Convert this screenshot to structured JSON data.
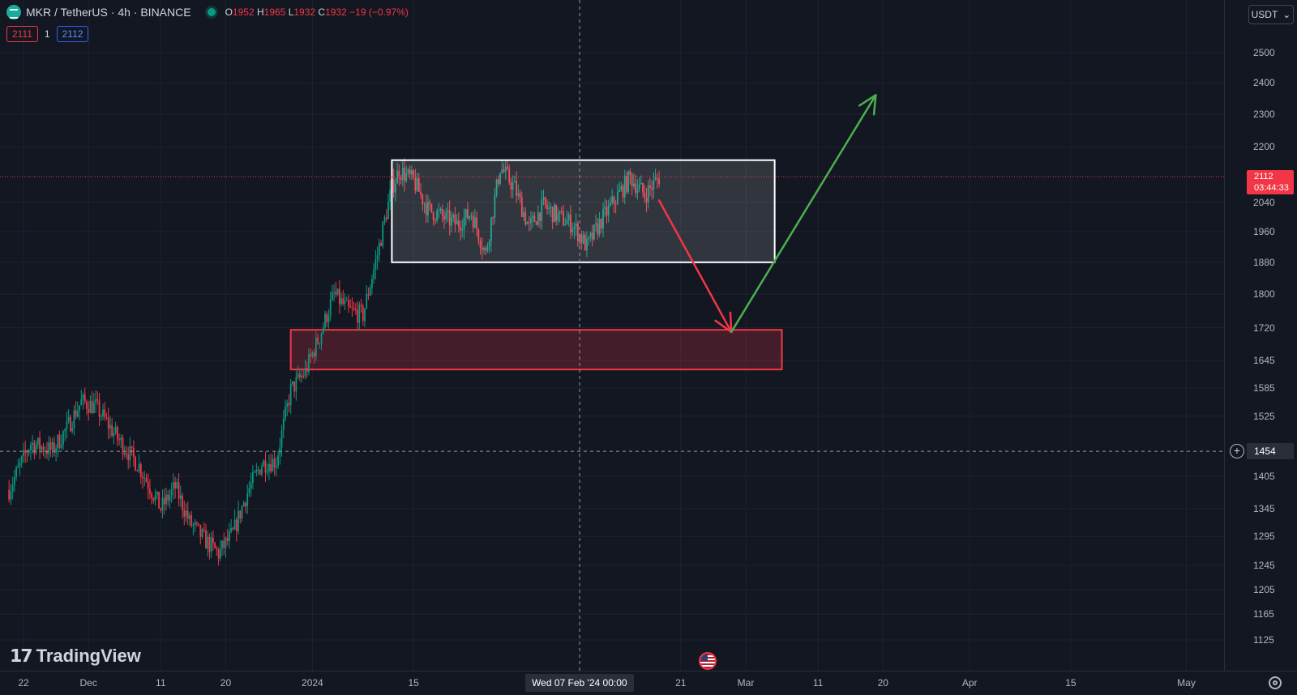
{
  "header": {
    "symbol": "MKR / TetherUS · 4h · BINANCE",
    "ohlc": {
      "o_label": "O",
      "o": "1952",
      "h_label": "H",
      "h": "1965",
      "l_label": "L",
      "l": "1932",
      "c_label": "C",
      "c": "1932",
      "change": "−19 (−0.97%)"
    },
    "bid": "2111",
    "spread": "1",
    "ask": "2112"
  },
  "currency": "USDT",
  "last_price": {
    "price": "2112",
    "countdown": "03:44:33"
  },
  "crosshair": {
    "price": "1454",
    "time_label": "Wed 07 Feb '24   00:00"
  },
  "watermark": "TradingView",
  "icons": {
    "symbol": "mkr-coin-icon",
    "status": "market-status-dot-icon",
    "currency_caret": "chevron-down-icon",
    "crosshair_add": "plus-circle-icon",
    "event": "us-flag-icon",
    "settings": "gear-icon"
  },
  "colors": {
    "background": "#131722",
    "up": "#089981",
    "down": "#f23645",
    "range_box": "#ffffff",
    "demand_zone": "#f23645",
    "bullish_arrow": "#4caf50",
    "bearish_arrow": "#f23645"
  },
  "chart_data": {
    "type": "candlestick",
    "title": "MKR / TetherUS · 4h · BINANCE",
    "y_scale": "log",
    "ylim": [
      1100,
      2600
    ],
    "y_ticks": [
      2500,
      2400,
      2300,
      2200,
      2040,
      1960,
      1880,
      1800,
      1720,
      1645,
      1585,
      1525,
      1405,
      1345,
      1295,
      1245,
      1205,
      1165,
      1125
    ],
    "x_ticks": [
      {
        "label": "22",
        "date": "2023-11-22"
      },
      {
        "label": "Dec",
        "date": "2023-12-01"
      },
      {
        "label": "11",
        "date": "2023-12-11"
      },
      {
        "label": "20",
        "date": "2023-12-20"
      },
      {
        "label": "2024",
        "date": "2024-01-01"
      },
      {
        "label": "15",
        "date": "2024-01-15"
      },
      {
        "label": "21",
        "date": "2024-02-21"
      },
      {
        "label": "Mar",
        "date": "2024-03-01"
      },
      {
        "label": "11",
        "date": "2024-03-11"
      },
      {
        "label": "20",
        "date": "2024-03-20"
      },
      {
        "label": "Apr",
        "date": "2024-04-01"
      },
      {
        "label": "15",
        "date": "2024-04-15"
      },
      {
        "label": "May",
        "date": "2024-05-01"
      }
    ],
    "grid": true,
    "price_path": [
      [
        "2023-11-20",
        1380
      ],
      [
        "2023-11-23",
        1470
      ],
      [
        "2023-11-26",
        1455
      ],
      [
        "2023-11-28",
        1500
      ],
      [
        "2023-11-30",
        1555
      ],
      [
        "2023-12-02",
        1545
      ],
      [
        "2023-12-05",
        1480
      ],
      [
        "2023-12-08",
        1425
      ],
      [
        "2023-12-11",
        1345
      ],
      [
        "2023-12-13",
        1385
      ],
      [
        "2023-12-15",
        1320
      ],
      [
        "2023-12-17",
        1290
      ],
      [
        "2023-12-19",
        1265
      ],
      [
        "2023-12-21",
        1300
      ],
      [
        "2023-12-23",
        1375
      ],
      [
        "2023-12-25",
        1430
      ],
      [
        "2023-12-27",
        1435
      ],
      [
        "2023-12-29",
        1580
      ],
      [
        "2023-12-31",
        1620
      ],
      [
        "2024-01-02",
        1700
      ],
      [
        "2024-01-04",
        1800
      ],
      [
        "2024-01-06",
        1760
      ],
      [
        "2024-01-08",
        1750
      ],
      [
        "2024-01-10",
        1900
      ],
      [
        "2024-01-12",
        2080
      ],
      [
        "2024-01-13",
        2130
      ],
      [
        "2024-01-15",
        2100
      ],
      [
        "2024-01-17",
        2020
      ],
      [
        "2024-01-19",
        2000
      ],
      [
        "2024-01-21",
        1980
      ],
      [
        "2024-01-23",
        2010
      ],
      [
        "2024-01-25",
        1900
      ],
      [
        "2024-01-27",
        2140
      ],
      [
        "2024-01-29",
        2080
      ],
      [
        "2024-01-31",
        1970
      ],
      [
        "2024-02-02",
        2030
      ],
      [
        "2024-02-04",
        2000
      ],
      [
        "2024-02-06",
        1980
      ],
      [
        "2024-02-08",
        1920
      ],
      [
        "2024-02-10",
        1990
      ],
      [
        "2024-02-12",
        2050
      ],
      [
        "2024-02-14",
        2110
      ],
      [
        "2024-02-16",
        2060
      ],
      [
        "2024-02-18",
        2110
      ]
    ],
    "range_box": {
      "x0": "2024-01-12",
      "x1": "2024-03-05",
      "y0": 1880,
      "y1": 2160
    },
    "demand_zone": {
      "x0": "2023-12-29",
      "x1": "2024-03-06",
      "y0": 1625,
      "y1": 1715
    },
    "bearish_arrow": {
      "from": [
        "2024-02-18",
        2045
      ],
      "to": [
        "2024-02-28",
        1710
      ]
    },
    "bullish_arrow": {
      "from": [
        "2024-02-28",
        1710
      ],
      "to": [
        "2024-03-19",
        2360
      ]
    },
    "last_price": 2112,
    "crosshair": {
      "date": "2024-02-07",
      "price": 1454
    }
  }
}
